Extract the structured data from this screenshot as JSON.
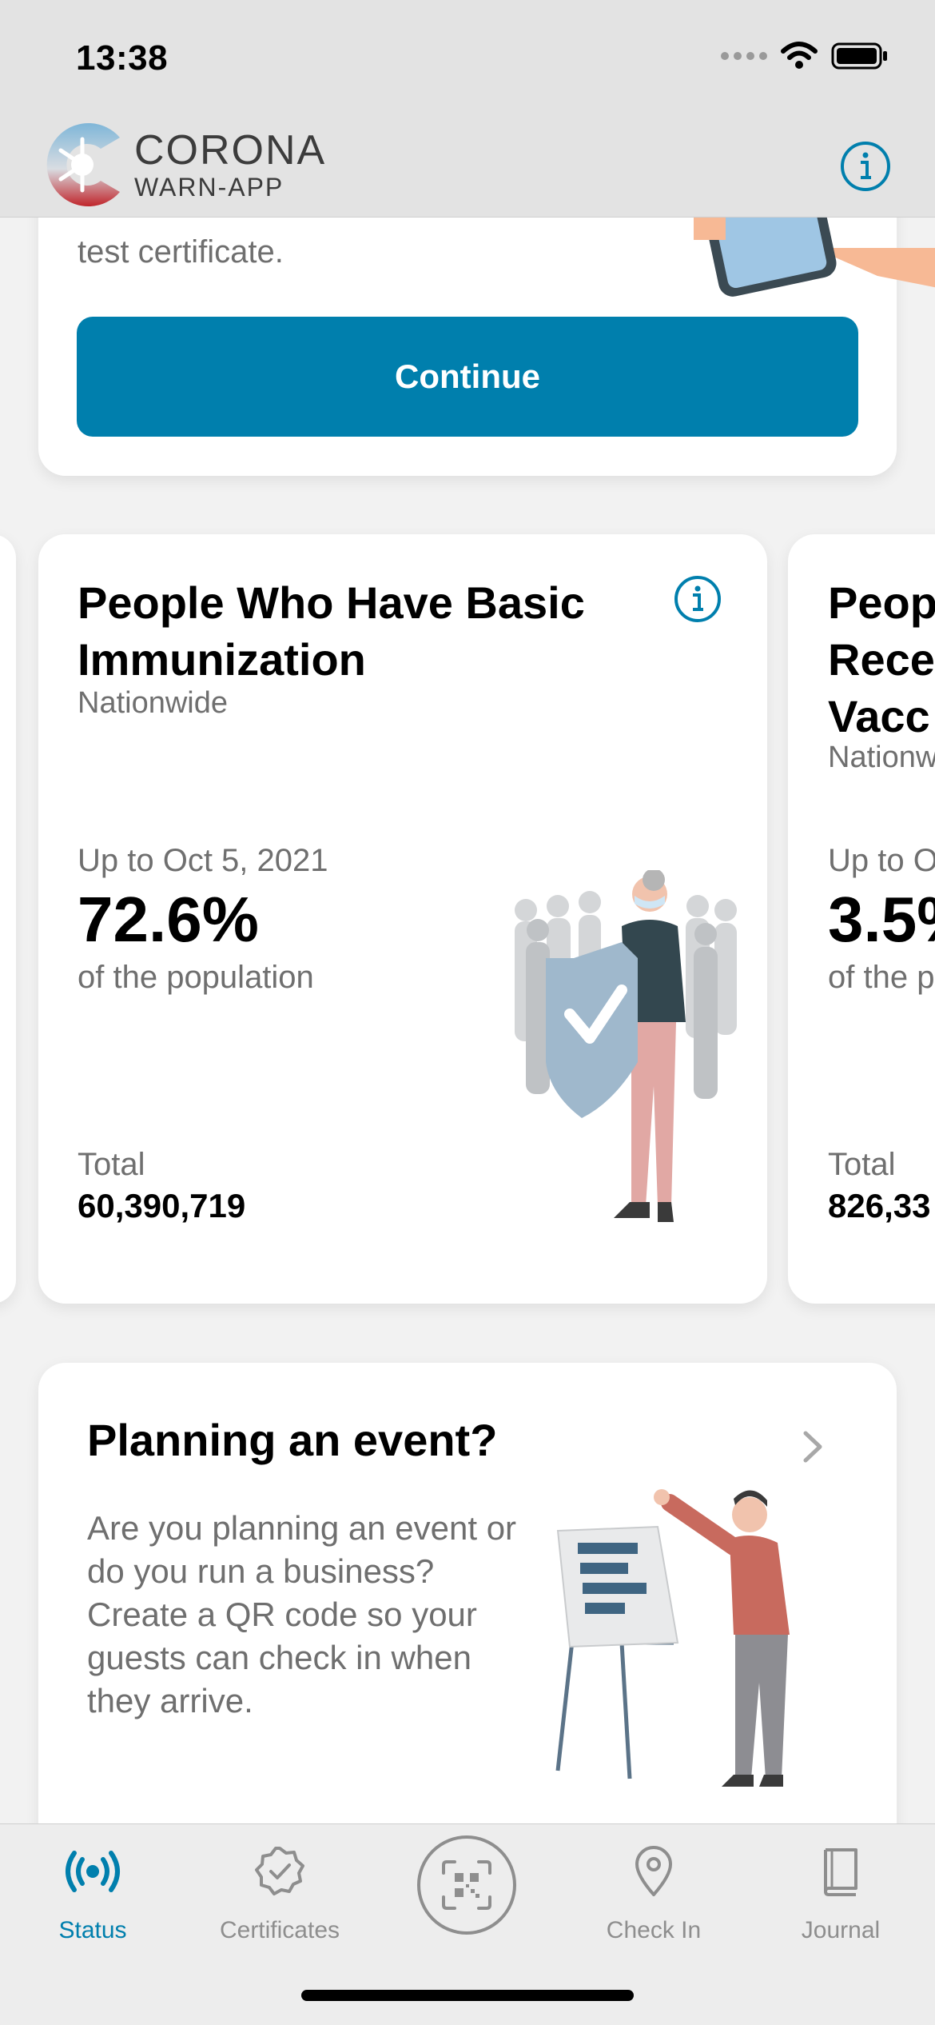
{
  "status_bar": {
    "time": "13:38"
  },
  "header": {
    "brand_title": "CORONA",
    "brand_subtitle": "WARN-APP"
  },
  "top_card": {
    "sub_text": "test certificate.",
    "continue_label": "Continue"
  },
  "stat_card": {
    "title": "People Who Have Basic Immunization",
    "region": "Nationwide",
    "date": "Up to Oct 5, 2021",
    "value": "72.6%",
    "value_suffix": "of the population",
    "total_label": "Total",
    "total_value": "60,390,719"
  },
  "peek_card": {
    "title": "Peop\nRece\nVacc",
    "region": "Nationw",
    "date": "Up to O",
    "value": "3.5%",
    "value_suffix": "of the p",
    "total_label": "Total",
    "total_value": "826,33"
  },
  "event_card": {
    "title": "Planning an event?",
    "description": "Are you planning an event or do you run a business? Create a QR code so your guests can check in when they arrive."
  },
  "tabs": [
    {
      "label": "Status",
      "icon": "broadcast-icon",
      "active": true
    },
    {
      "label": "Certificates",
      "icon": "certificate-icon",
      "active": false
    },
    {
      "label": "Check In",
      "icon": "location-pin-icon",
      "active": false
    },
    {
      "label": "Journal",
      "icon": "journal-icon",
      "active": false
    }
  ],
  "colors": {
    "accent": "#007fad",
    "inactive": "#8e8e8e",
    "text_secondary": "#6f6f6f"
  }
}
